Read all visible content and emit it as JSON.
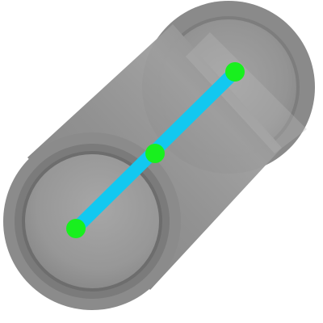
{
  "scene": {
    "object": "cylinder",
    "view": "oblique"
  },
  "colors": {
    "background": "#ffffff",
    "cylinder_body": "#8f8f8f",
    "cylinder_shadow": "#7a7a7a",
    "cylinder_highlight": "#b5b5b5",
    "rim_outer": "#777777",
    "rim_inner": "#9b9b9b",
    "axis_line": "#12c8f0",
    "axis_point": "#18f01e"
  },
  "annotations": {
    "axis_points_count": 3
  }
}
